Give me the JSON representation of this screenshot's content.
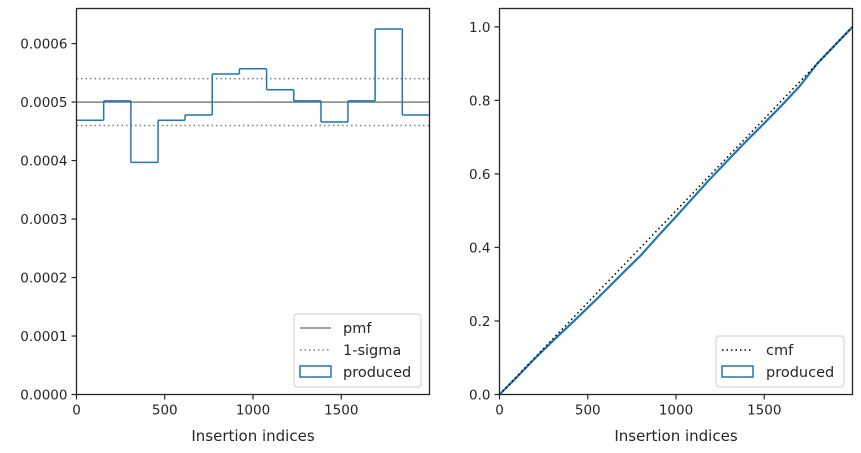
{
  "chart_data": [
    {
      "type": "step",
      "xlabel": "Insertion indices",
      "ylabel": "",
      "xlim": [
        0,
        2000
      ],
      "ylim": [
        0,
        0.00066
      ],
      "xticks": [
        "0",
        "500",
        "1000",
        "1500"
      ],
      "xtick_values": [
        0,
        500,
        1000,
        1500
      ],
      "yticks": [
        "0.0000",
        "0.0001",
        "0.0002",
        "0.0003",
        "0.0004",
        "0.0005",
        "0.0006"
      ],
      "ytick_values": [
        0,
        0.0001,
        0.0002,
        0.0003,
        0.0004,
        0.0005,
        0.0006
      ],
      "pmf": 0.0005,
      "sigma_band": [
        0.00046,
        0.00054
      ],
      "bin_edges": [
        0,
        154,
        308,
        462,
        615,
        769,
        923,
        1077,
        1231,
        1385,
        1538,
        1692,
        1846,
        2000
      ],
      "produced": [
        0.000469,
        0.000502,
        0.000397,
        0.000469,
        0.000478,
        0.000548,
        0.000557,
        0.000521,
        0.000502,
        0.000466,
        0.000502,
        0.000625,
        0.000478
      ],
      "legend": {
        "location": "lower right",
        "entries": [
          "pmf",
          "1-sigma",
          "produced"
        ]
      },
      "colors": {
        "pmf": "#808080",
        "sigma": "#808080",
        "produced": "#1f77b4"
      }
    },
    {
      "type": "line",
      "xlabel": "Insertion indices",
      "ylabel": "",
      "xlim": [
        0,
        2000
      ],
      "ylim": [
        0,
        1.05
      ],
      "xticks": [
        "0",
        "500",
        "1000",
        "1500"
      ],
      "xtick_values": [
        0,
        500,
        1000,
        1500
      ],
      "yticks": [
        "0.0",
        "0.2",
        "0.4",
        "0.6",
        "0.8",
        "1.0"
      ],
      "ytick_values": [
        0,
        0.2,
        0.4,
        0.6,
        0.8,
        1.0
      ],
      "cmf": {
        "x": [
          0,
          2000
        ],
        "y": [
          0,
          1
        ]
      },
      "produced": {
        "x": [
          0,
          100,
          200,
          300,
          400,
          500,
          600,
          700,
          800,
          900,
          1000,
          1100,
          1200,
          1300,
          1400,
          1500,
          1600,
          1700,
          1800,
          1900,
          2000
        ],
        "y": [
          0,
          0.048,
          0.098,
          0.145,
          0.19,
          0.236,
          0.283,
          0.331,
          0.378,
          0.432,
          0.484,
          0.537,
          0.59,
          0.64,
          0.69,
          0.738,
          0.787,
          0.838,
          0.9,
          0.95,
          1.0
        ]
      },
      "legend": {
        "location": "lower right",
        "entries": [
          "cmf",
          "produced"
        ]
      },
      "colors": {
        "cmf": "#000000",
        "produced": "#1f77b4"
      }
    }
  ]
}
